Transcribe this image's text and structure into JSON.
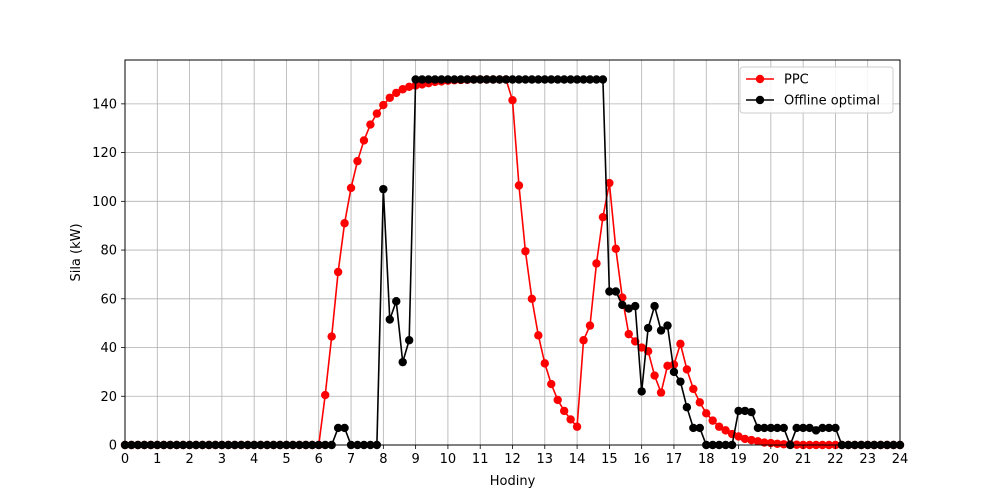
{
  "chart_data": {
    "type": "line",
    "title": "",
    "xlabel": "Hodiny",
    "ylabel": "Sila (kW)",
    "xlim": [
      0,
      24
    ],
    "ylim": [
      0,
      158
    ],
    "xticks": [
      0,
      1,
      2,
      3,
      4,
      5,
      6,
      7,
      8,
      9,
      10,
      11,
      12,
      13,
      14,
      15,
      16,
      17,
      18,
      19,
      20,
      21,
      22,
      23,
      24
    ],
    "yticks": [
      0,
      20,
      40,
      60,
      80,
      100,
      120,
      140
    ],
    "grid": true,
    "legend_position": "top-right",
    "x_step": 0.2,
    "series": [
      {
        "name": "PPC",
        "color": "#ff0000",
        "values": [
          0,
          0,
          0,
          0,
          0,
          0,
          0,
          0,
          0,
          0,
          0,
          0,
          0,
          0,
          0,
          0,
          0,
          0,
          0,
          0,
          0,
          0,
          0,
          0,
          0,
          0,
          0,
          0,
          0,
          0,
          0,
          20.5,
          44.5,
          71,
          91,
          105.5,
          116.5,
          125,
          131.5,
          136,
          139.5,
          142.5,
          144.5,
          146,
          147,
          147.5,
          148,
          148.5,
          149,
          149.2,
          149.5,
          149.7,
          149.8,
          149.9,
          150,
          150,
          150,
          150,
          150,
          150,
          141.5,
          106.5,
          79.5,
          60,
          45,
          33.5,
          25,
          18.5,
          14,
          10.5,
          7.5,
          43,
          49,
          74.5,
          93.5,
          107.5,
          80.5,
          60.5,
          45.5,
          42.5,
          40,
          38.5,
          28.5,
          21.5,
          32.5,
          33,
          41.5,
          31,
          23,
          17.5,
          13,
          10,
          7.5,
          6,
          4.5,
          3.5,
          2.5,
          2,
          1.5,
          1,
          0.8,
          0.5,
          0.3,
          0.2,
          0.1,
          0,
          0,
          0,
          0,
          0,
          0,
          0,
          0,
          0,
          0,
          0,
          0,
          0,
          0,
          0,
          0
        ]
      },
      {
        "name": "Offline optimal",
        "color": "#000000",
        "values": [
          0,
          0,
          0,
          0,
          0,
          0,
          0,
          0,
          0,
          0,
          0,
          0,
          0,
          0,
          0,
          0,
          0,
          0,
          0,
          0,
          0,
          0,
          0,
          0,
          0,
          0,
          0,
          0,
          0,
          0,
          0,
          0,
          0,
          7,
          7,
          0,
          0,
          0,
          0,
          0,
          105,
          51.5,
          59,
          34,
          43,
          150,
          150,
          150,
          150,
          150,
          150,
          150,
          150,
          150,
          150,
          150,
          150,
          150,
          150,
          150,
          150,
          150,
          150,
          150,
          150,
          150,
          150,
          150,
          150,
          150,
          150,
          150,
          150,
          150,
          150,
          63,
          63,
          57.5,
          56,
          57,
          22,
          48,
          57,
          47,
          49,
          30,
          26,
          15.5,
          7,
          7,
          0,
          0,
          0,
          0,
          0,
          14,
          14,
          13.5,
          7,
          7,
          7,
          7,
          7,
          0,
          7,
          7,
          7,
          6,
          7,
          7,
          7,
          0,
          0,
          0,
          0,
          0,
          0,
          0,
          0,
          0,
          0
        ]
      }
    ]
  }
}
